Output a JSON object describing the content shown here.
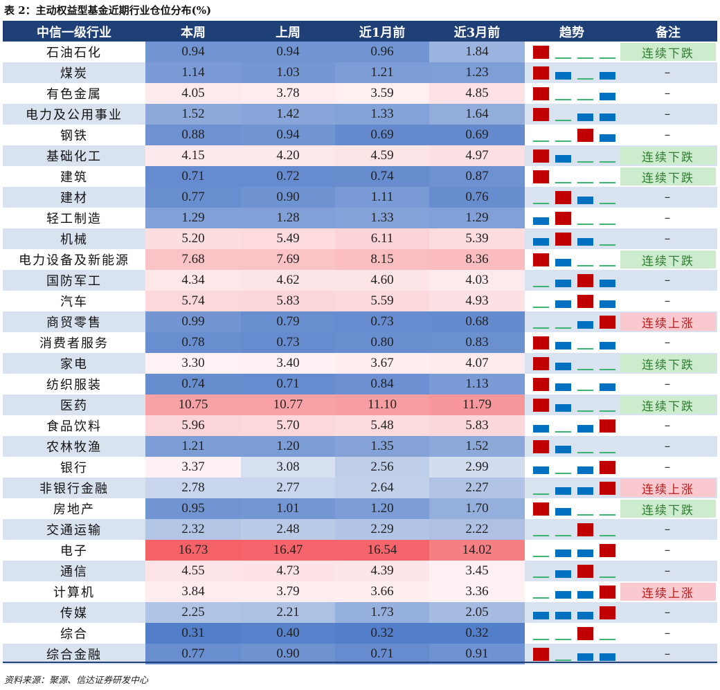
{
  "caption": "表 2：主动权益型基金近期行业仓位分布(%)",
  "source": "资料来源：聚源、信达证券研发中心",
  "headers": [
    "中信一级行业",
    "本周",
    "上周",
    "近1月前",
    "近3月前",
    "趋势",
    "备注"
  ],
  "colors": {
    "header_bg": "#1f3f77",
    "trend_up": "#c00000",
    "trend_down": "#0070c0",
    "trend_flat": "#3cb371",
    "note_down_bg": "#cdeccd",
    "note_up_bg": "#f9c9cf",
    "stripe": "#d9e2ef"
  },
  "rows": [
    {
      "industry": "石油石化",
      "values": [
        "0.94",
        "0.94",
        "0.96",
        "1.84"
      ],
      "trend": [
        "up",
        "flat",
        "flat",
        "flat"
      ],
      "note": "连续下跌"
    },
    {
      "industry": "煤炭",
      "values": [
        "1.14",
        "1.03",
        "1.21",
        "1.23"
      ],
      "trend": [
        "up",
        "down",
        "flat",
        "down"
      ],
      "note": "–"
    },
    {
      "industry": "有色金属",
      "values": [
        "4.05",
        "3.78",
        "3.59",
        "4.85"
      ],
      "trend": [
        "up",
        "flat",
        "flat",
        "down"
      ],
      "note": "–"
    },
    {
      "industry": "电力及公用事业",
      "values": [
        "1.52",
        "1.42",
        "1.33",
        "1.64"
      ],
      "trend": [
        "up",
        "flat",
        "down",
        "down"
      ],
      "note": "–"
    },
    {
      "industry": "钢铁",
      "values": [
        "0.88",
        "0.94",
        "0.69",
        "0.69"
      ],
      "trend": [
        "flat",
        "flat",
        "up",
        "down"
      ],
      "note": "–"
    },
    {
      "industry": "基础化工",
      "values": [
        "4.15",
        "4.20",
        "4.59",
        "4.97"
      ],
      "trend": [
        "up",
        "down",
        "flat",
        "flat"
      ],
      "note": "连续下跌"
    },
    {
      "industry": "建筑",
      "values": [
        "0.71",
        "0.72",
        "0.74",
        "0.87"
      ],
      "trend": [
        "up",
        "flat",
        "flat",
        "flat"
      ],
      "note": "连续下跌"
    },
    {
      "industry": "建材",
      "values": [
        "0.77",
        "0.90",
        "1.11",
        "0.76"
      ],
      "trend": [
        "flat",
        "up",
        "down",
        "flat"
      ],
      "note": "–"
    },
    {
      "industry": "轻工制造",
      "values": [
        "1.29",
        "1.28",
        "1.33",
        "1.29"
      ],
      "trend": [
        "down",
        "up",
        "flat",
        "flat"
      ],
      "note": "–"
    },
    {
      "industry": "机械",
      "values": [
        "5.20",
        "5.49",
        "6.11",
        "5.39"
      ],
      "trend": [
        "down",
        "up",
        "down",
        "flat"
      ],
      "note": "–"
    },
    {
      "industry": "电力设备及新能源",
      "values": [
        "7.68",
        "7.69",
        "8.15",
        "8.36"
      ],
      "trend": [
        "up",
        "down",
        "flat",
        "flat"
      ],
      "note": "连续下跌"
    },
    {
      "industry": "国防军工",
      "values": [
        "4.34",
        "4.62",
        "4.60",
        "4.03"
      ],
      "trend": [
        "flat",
        "down",
        "up",
        "down"
      ],
      "note": "–"
    },
    {
      "industry": "汽车",
      "values": [
        "5.74",
        "5.83",
        "5.59",
        "4.93"
      ],
      "trend": [
        "flat",
        "down",
        "up",
        "down"
      ],
      "note": "–"
    },
    {
      "industry": "商贸零售",
      "values": [
        "0.99",
        "0.79",
        "0.73",
        "0.68"
      ],
      "trend": [
        "flat",
        "flat",
        "down",
        "up"
      ],
      "note": "连续上涨"
    },
    {
      "industry": "消费者服务",
      "values": [
        "0.78",
        "0.73",
        "0.80",
        "0.83"
      ],
      "trend": [
        "up",
        "down",
        "flat",
        "down"
      ],
      "note": "–"
    },
    {
      "industry": "家电",
      "values": [
        "3.30",
        "3.40",
        "3.67",
        "4.07"
      ],
      "trend": [
        "up",
        "down",
        "flat",
        "flat"
      ],
      "note": "连续下跌"
    },
    {
      "industry": "纺织服装",
      "values": [
        "0.74",
        "0.71",
        "0.84",
        "1.13"
      ],
      "trend": [
        "up",
        "down",
        "flat",
        "down"
      ],
      "note": "–"
    },
    {
      "industry": "医药",
      "values": [
        "10.75",
        "10.77",
        "11.10",
        "11.79"
      ],
      "trend": [
        "up",
        "down",
        "flat",
        "flat"
      ],
      "note": "连续下跌"
    },
    {
      "industry": "食品饮料",
      "values": [
        "5.96",
        "5.70",
        "5.48",
        "5.83"
      ],
      "trend": [
        "down",
        "flat",
        "down",
        "up"
      ],
      "note": "–"
    },
    {
      "industry": "农林牧渔",
      "values": [
        "1.21",
        "1.20",
        "1.35",
        "1.52"
      ],
      "trend": [
        "up",
        "down",
        "flat",
        "flat"
      ],
      "note": "–"
    },
    {
      "industry": "银行",
      "values": [
        "3.37",
        "3.08",
        "2.56",
        "2.99"
      ],
      "trend": [
        "down",
        "flat",
        "down",
        "up"
      ],
      "note": "–"
    },
    {
      "industry": "非银行金融",
      "values": [
        "2.78",
        "2.77",
        "2.64",
        "2.27"
      ],
      "trend": [
        "flat",
        "down",
        "down",
        "up"
      ],
      "note": "连续上涨"
    },
    {
      "industry": "房地产",
      "values": [
        "0.95",
        "1.01",
        "1.20",
        "1.70"
      ],
      "trend": [
        "up",
        "down",
        "flat",
        "flat"
      ],
      "note": "连续下跌"
    },
    {
      "industry": "交通运输",
      "values": [
        "2.32",
        "2.48",
        "2.29",
        "2.22"
      ],
      "trend": [
        "flat",
        "flat",
        "up",
        "flat"
      ],
      "note": "–"
    },
    {
      "industry": "电子",
      "values": [
        "16.73",
        "16.47",
        "16.54",
        "14.02"
      ],
      "trend": [
        "flat",
        "down",
        "down",
        "up"
      ],
      "note": "–"
    },
    {
      "industry": "通信",
      "values": [
        "4.55",
        "4.73",
        "4.39",
        "3.45"
      ],
      "trend": [
        "flat",
        "down",
        "up",
        "flat"
      ],
      "note": "–"
    },
    {
      "industry": "计算机",
      "values": [
        "3.84",
        "3.79",
        "3.66",
        "3.36"
      ],
      "trend": [
        "flat",
        "down",
        "down",
        "up"
      ],
      "note": "连续上涨"
    },
    {
      "industry": "传媒",
      "values": [
        "2.25",
        "2.21",
        "1.73",
        "2.05"
      ],
      "trend": [
        "down",
        "down",
        "down",
        "up"
      ],
      "note": "–"
    },
    {
      "industry": "综合",
      "values": [
        "0.31",
        "0.40",
        "0.32",
        "0.32"
      ],
      "trend": [
        "flat",
        "flat",
        "up",
        "flat"
      ],
      "note": "–"
    },
    {
      "industry": "综合金融",
      "values": [
        "0.77",
        "0.90",
        "0.71",
        "0.91"
      ],
      "trend": [
        "up",
        "flat",
        "down",
        "down"
      ],
      "note": "–"
    }
  ]
}
